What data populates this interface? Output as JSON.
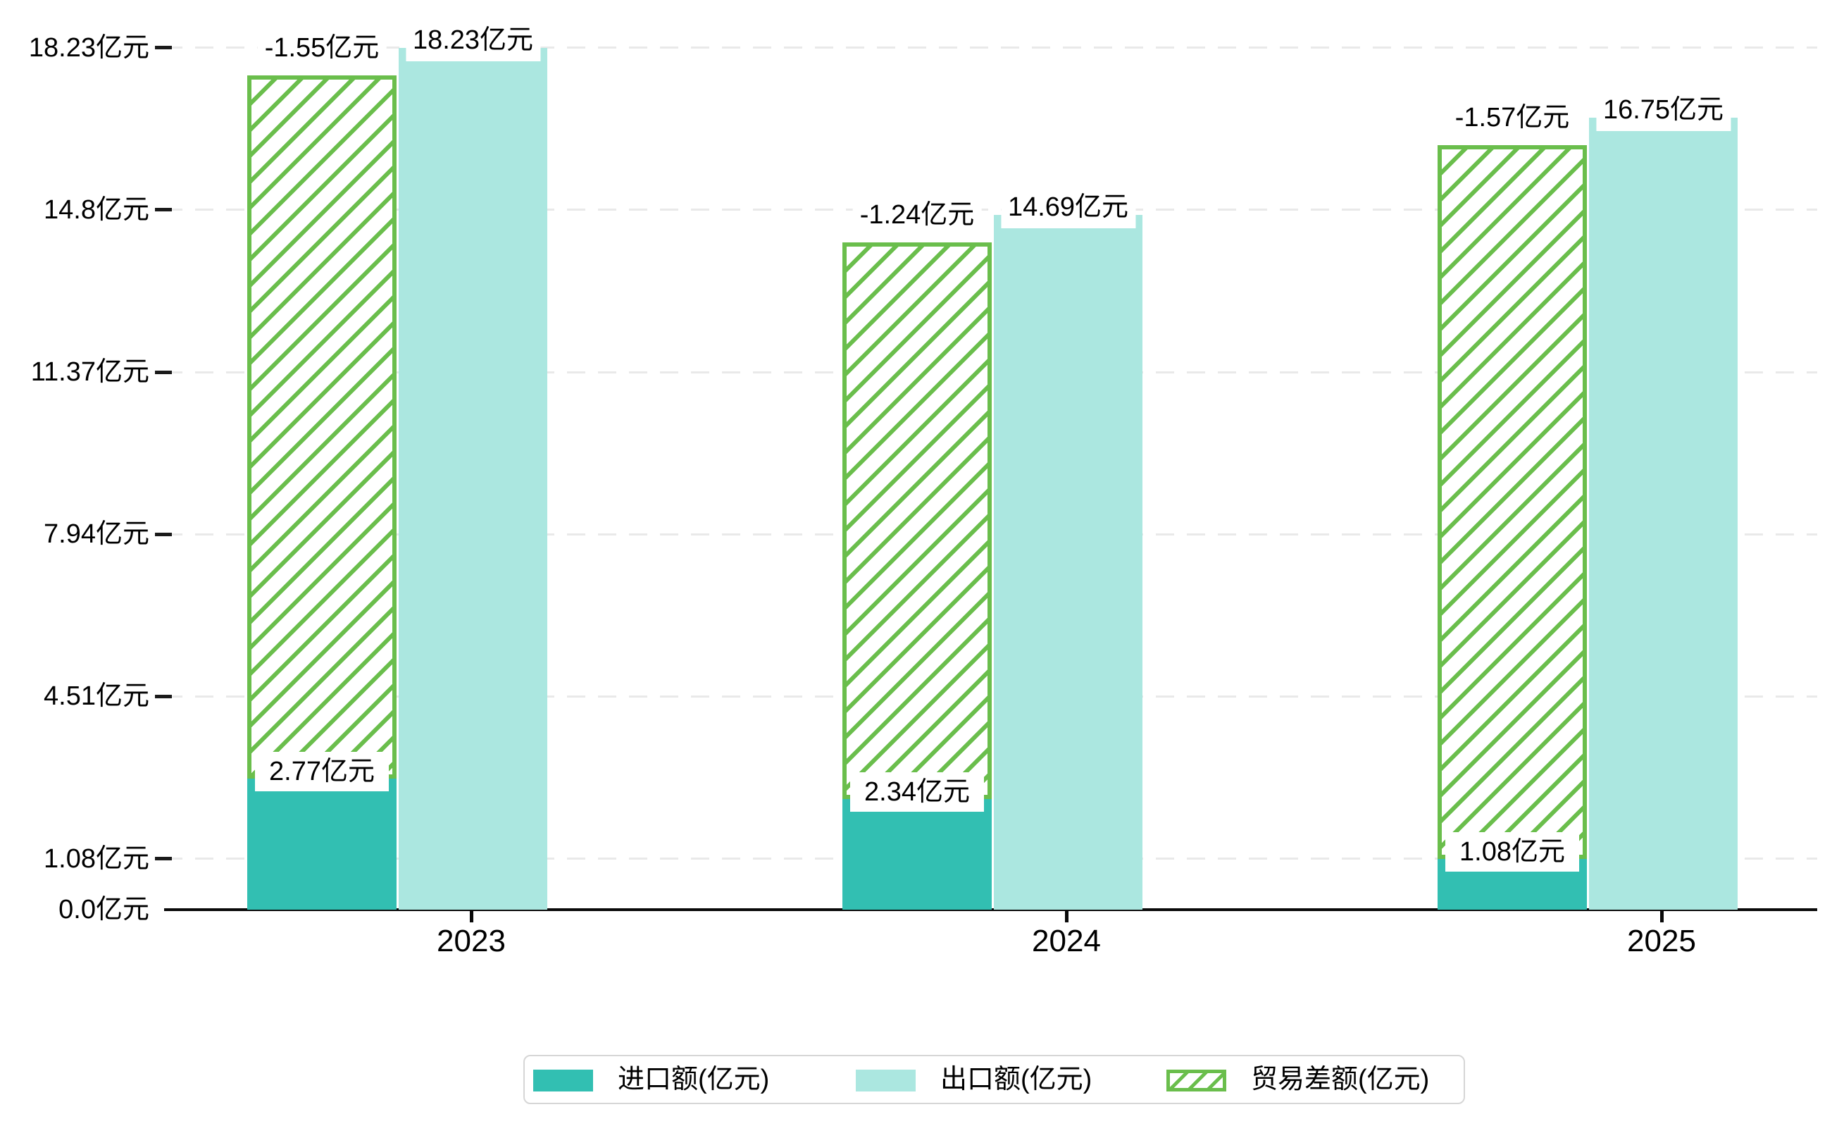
{
  "chart_data": {
    "type": "bar",
    "categories": [
      "2023",
      "2024",
      "2025"
    ],
    "series": [
      {
        "name": "进口额(亿元)",
        "values": [
          2.77,
          2.34,
          1.08
        ],
        "labels": [
          "2.77亿元",
          "2.34亿元",
          "1.08亿元"
        ],
        "color": "#32BFB2",
        "style": "solid"
      },
      {
        "name": "出口额(亿元)",
        "values": [
          18.23,
          14.69,
          16.75
        ],
        "labels": [
          "18.23亿元",
          "14.69亿元",
          "16.75亿元"
        ],
        "color": "#ABE7E0",
        "style": "solid"
      },
      {
        "name": "贸易差额(亿元)",
        "values": [
          -1.55,
          -1.24,
          -1.57
        ],
        "labels": [
          "-1.55亿元",
          "-1.24亿元",
          "-1.57亿元"
        ],
        "color": "#6ABE4C",
        "style": "hatched-diagonal"
      }
    ],
    "yticks": [
      0,
      1.08,
      4.51,
      7.94,
      11.37,
      14.8,
      18.23
    ],
    "ytick_labels": [
      "0.0亿元",
      "1.08亿元",
      "4.51亿元",
      "7.94亿元",
      "11.37亿元",
      "14.8亿元",
      "18.23亿元"
    ],
    "ylim": [
      0,
      19.3
    ],
    "xlabel": "",
    "ylabel": "",
    "title": "",
    "grid": "horizontal-dashed",
    "legend_position": "bottom-center"
  },
  "legend": {
    "items": [
      {
        "label": "进口额(亿元)",
        "swatch": "solid-dark-teal"
      },
      {
        "label": "出口额(亿元)",
        "swatch": "solid-light-teal"
      },
      {
        "label": "贸易差额(亿元)",
        "swatch": "green-hatched"
      }
    ]
  },
  "colors": {
    "import_bar": "#32BFB2",
    "export_bar": "#ABE7E0",
    "trade_balance_hatch": "#6ABE4C",
    "axis": "#0a0a0a",
    "gridline": "#e9e9e9",
    "label_text": "#000000",
    "legend_border": "#d6d6d6",
    "background": "#ffffff"
  }
}
